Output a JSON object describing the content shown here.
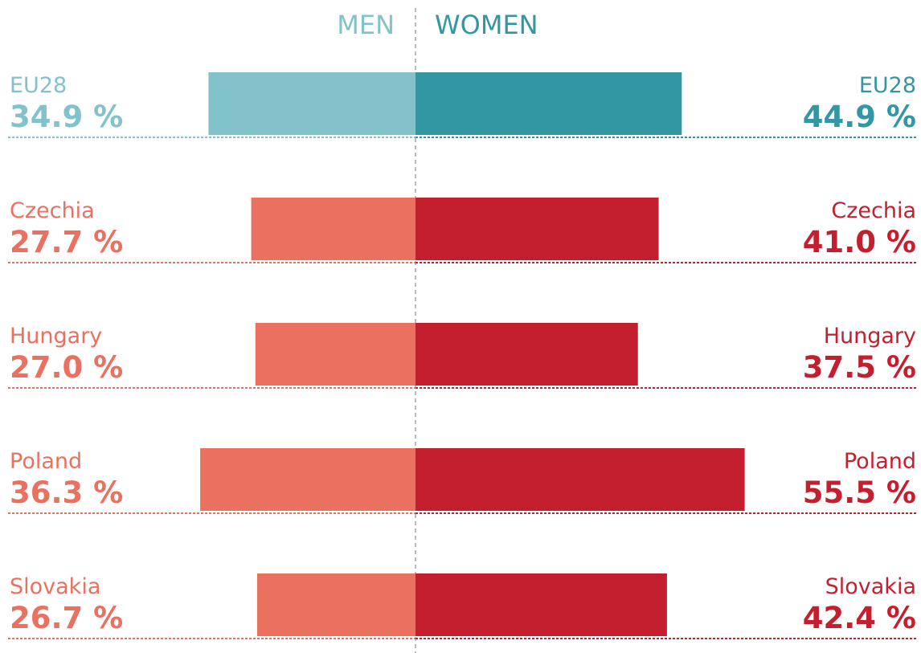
{
  "chart_data": {
    "type": "butterfly",
    "categories": [
      "EU28",
      "Czechia",
      "Hungary",
      "Poland",
      "Slovakia"
    ],
    "series": [
      {
        "name": "MEN",
        "color": "#82c3cb",
        "colors": [
          "#82c3cb",
          "#ea7060",
          "#ea7060",
          "#ea7060",
          "#ea7060"
        ],
        "values": [
          34.9,
          27.7,
          27.0,
          36.3,
          26.7
        ],
        "value_labels": [
          "34.9 %",
          "27.7 %",
          "27.0 %",
          "36.3 %",
          "26.7 %"
        ]
      },
      {
        "name": "WOMEN",
        "color": "#3397a3",
        "colors": [
          "#3397a3",
          "#c41f2f",
          "#c41f2f",
          "#c41f2f",
          "#c41f2f"
        ],
        "values": [
          44.9,
          41.0,
          37.5,
          55.5,
          42.4
        ],
        "value_labels": [
          "44.9 %",
          "41.0 %",
          "37.5 %",
          "55.5 %",
          "42.4 %"
        ]
      }
    ]
  }
}
